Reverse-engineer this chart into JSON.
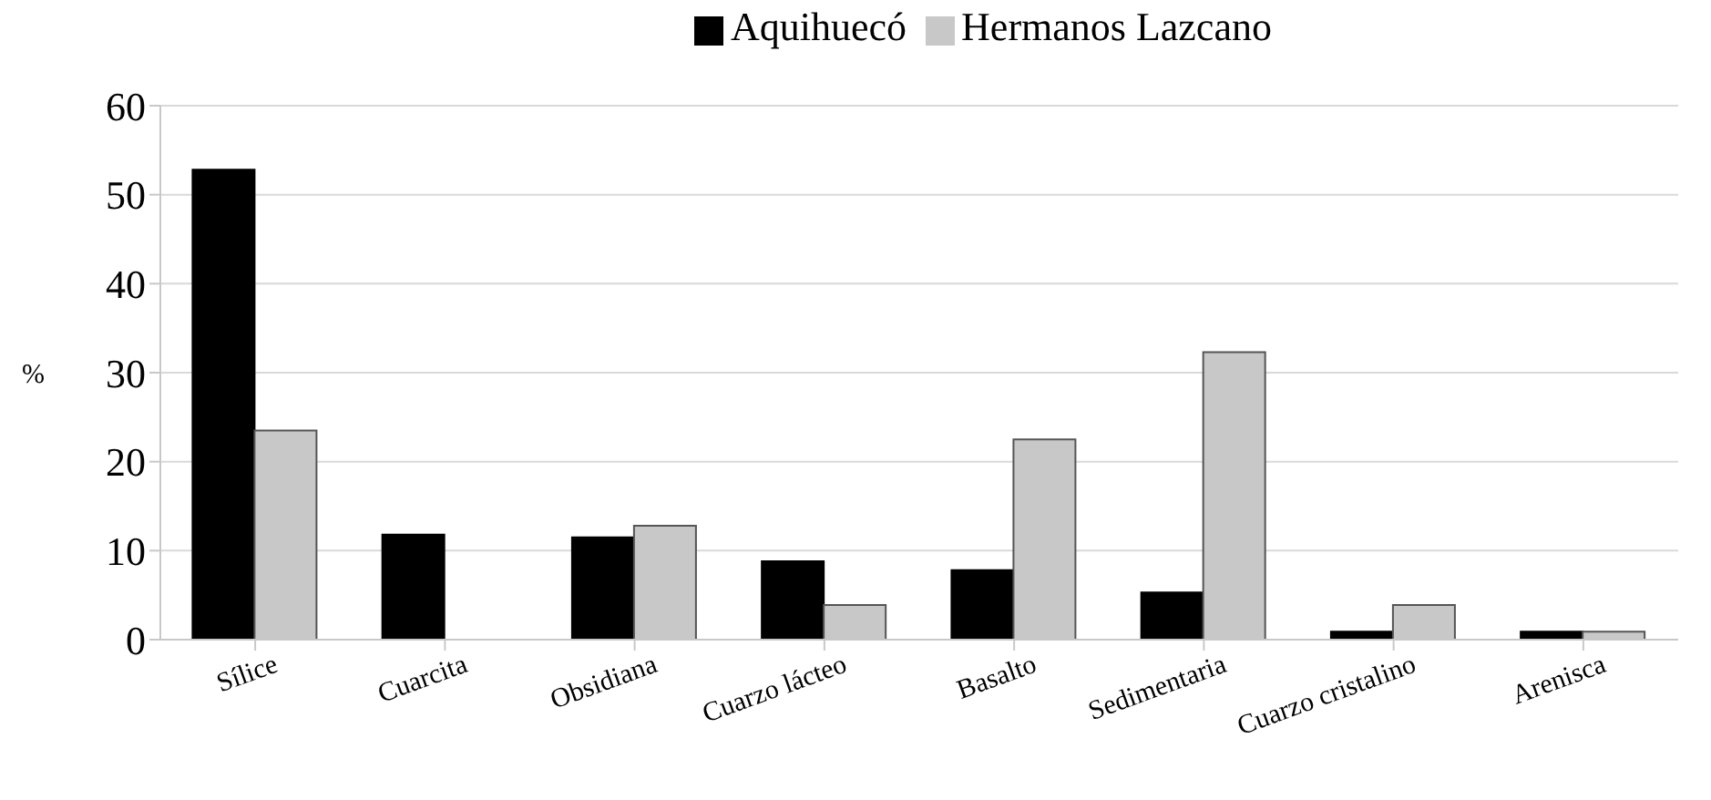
{
  "chart_data": {
    "type": "bar",
    "ylabel": "%",
    "categories": [
      "Sílice",
      "Cuarcita",
      "Obsidiana",
      "Cuarzo lácteo",
      "Basalto",
      "Sedimentaria",
      "Cuarzo cristalino",
      "Arenisca"
    ],
    "series": [
      {
        "name": "Aquihuecó",
        "color": "#000000",
        "values": [
          52.8,
          11.8,
          11.5,
          8.8,
          7.8,
          5.3,
          0.9,
          0.9
        ]
      },
      {
        "name": "Hermanos Lazcano",
        "color": "#c8c8c8",
        "values": [
          23.5,
          0,
          12.8,
          3.9,
          22.5,
          32.3,
          3.9,
          0.9
        ]
      }
    ],
    "ylim": [
      0,
      60
    ],
    "yticks": [
      0,
      10,
      20,
      30,
      40,
      50,
      60
    ],
    "grid": "y",
    "legend": "top"
  }
}
